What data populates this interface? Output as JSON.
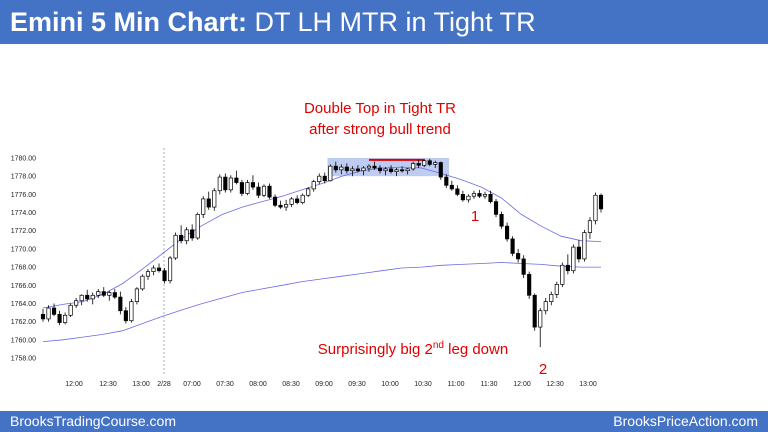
{
  "header": {
    "title_bold": "Emini 5 Min Chart:",
    "title_rest": " DT LH MTR in Tight TR"
  },
  "footer": {
    "left": "BrooksTradingCourse.com",
    "right": "BrooksPriceAction.com"
  },
  "colors": {
    "brand_blue": "#4472c4",
    "annotation_red": "#e00000",
    "ema_blue": "#6a6ae8",
    "range_fill": "#aabbee"
  },
  "chart_data": {
    "type": "candlestick",
    "title": "",
    "xlabel": "",
    "ylabel": "",
    "y_ticks": [
      "1758.00",
      "1760.00",
      "1762.00",
      "1764.00",
      "1766.00",
      "1768.00",
      "1770.00",
      "1772.00",
      "1774.00",
      "1776.00",
      "1778.00",
      "1780.00"
    ],
    "ylim": [
      1757,
      1781
    ],
    "x_ticks": [
      "12:00",
      "12:30",
      "13:00",
      "2/28",
      "07:00",
      "07:30",
      "08:00",
      "08:30",
      "09:00",
      "09:30",
      "10:00",
      "10:30",
      "11:00",
      "11:30",
      "12:00",
      "12:30",
      "13:00"
    ],
    "session_break": "2/28",
    "annotations": {
      "double_top_line1": "Double Top in Tight TR",
      "double_top_line2": "after strong bull trend",
      "leg1": "1",
      "leg2": "2",
      "second_leg_prefix": "Surprisingly big 2",
      "second_leg_sup": "nd",
      "second_leg_suffix": " leg down"
    },
    "candles": [
      [
        1762.8,
        1763.4,
        1762.0,
        1762.3
      ],
      [
        1762.3,
        1763.8,
        1762.0,
        1763.5
      ],
      [
        1763.5,
        1764.0,
        1762.6,
        1762.8
      ],
      [
        1762.8,
        1763.2,
        1761.6,
        1761.9
      ],
      [
        1761.9,
        1763.0,
        1761.7,
        1762.7
      ],
      [
        1762.7,
        1764.0,
        1762.5,
        1763.8
      ],
      [
        1763.8,
        1764.6,
        1763.5,
        1764.3
      ],
      [
        1764.3,
        1765.0,
        1763.8,
        1764.9
      ],
      [
        1764.9,
        1765.5,
        1764.2,
        1764.5
      ],
      [
        1764.5,
        1765.2,
        1763.9,
        1764.9
      ],
      [
        1764.9,
        1765.6,
        1764.6,
        1765.3
      ],
      [
        1765.3,
        1765.8,
        1764.7,
        1764.9
      ],
      [
        1764.9,
        1765.4,
        1764.3,
        1765.2
      ],
      [
        1765.2,
        1765.6,
        1764.5,
        1764.7
      ],
      [
        1764.7,
        1765.3,
        1762.8,
        1763.2
      ],
      [
        1763.2,
        1763.6,
        1761.8,
        1762.1
      ],
      [
        1762.1,
        1764.5,
        1761.9,
        1764.2
      ],
      [
        1764.2,
        1765.8,
        1763.9,
        1765.6
      ],
      [
        1765.6,
        1767.2,
        1765.4,
        1767.0
      ],
      [
        1767.0,
        1767.8,
        1766.6,
        1767.5
      ],
      [
        1767.5,
        1768.2,
        1767.1,
        1767.9
      ],
      [
        1767.9,
        1768.4,
        1767.4,
        1767.6
      ],
      [
        1767.6,
        1767.9,
        1766.2,
        1766.5
      ],
      [
        1766.5,
        1769.2,
        1766.2,
        1769.0
      ],
      [
        1769.0,
        1771.8,
        1768.8,
        1771.5
      ],
      [
        1771.5,
        1772.6,
        1770.6,
        1770.9
      ],
      [
        1770.9,
        1772.4,
        1770.5,
        1772.1
      ],
      [
        1772.1,
        1772.7,
        1770.9,
        1771.2
      ],
      [
        1771.2,
        1774.0,
        1771.0,
        1773.8
      ],
      [
        1773.8,
        1775.8,
        1773.4,
        1775.5
      ],
      [
        1775.5,
        1776.3,
        1774.3,
        1774.6
      ],
      [
        1774.6,
        1776.7,
        1774.2,
        1776.4
      ],
      [
        1776.4,
        1778.2,
        1776.0,
        1777.9
      ],
      [
        1777.9,
        1778.3,
        1776.2,
        1776.5
      ],
      [
        1776.5,
        1778.1,
        1776.2,
        1777.8
      ],
      [
        1777.8,
        1778.6,
        1777.1,
        1777.3
      ],
      [
        1777.3,
        1777.6,
        1775.8,
        1776.1
      ],
      [
        1776.1,
        1777.6,
        1775.9,
        1777.3
      ],
      [
        1777.3,
        1778.1,
        1776.5,
        1776.8
      ],
      [
        1776.8,
        1777.3,
        1775.6,
        1775.9
      ],
      [
        1775.9,
        1777.1,
        1775.7,
        1776.9
      ],
      [
        1776.9,
        1777.2,
        1775.5,
        1775.7
      ],
      [
        1775.7,
        1776.0,
        1774.6,
        1774.8
      ],
      [
        1774.8,
        1775.3,
        1774.4,
        1774.6
      ],
      [
        1774.6,
        1775.4,
        1774.2,
        1774.9
      ],
      [
        1774.9,
        1775.7,
        1774.6,
        1775.5
      ],
      [
        1775.5,
        1775.9,
        1774.9,
        1775.1
      ],
      [
        1775.1,
        1776.1,
        1774.9,
        1775.9
      ],
      [
        1775.9,
        1776.8,
        1775.7,
        1776.6
      ],
      [
        1776.6,
        1777.6,
        1776.3,
        1777.4
      ],
      [
        1777.4,
        1778.3,
        1777.1,
        1778.0
      ],
      [
        1778.0,
        1778.4,
        1777.2,
        1777.5
      ],
      [
        1777.5,
        1779.3,
        1777.4,
        1779.1
      ],
      [
        1779.1,
        1779.6,
        1778.4,
        1778.7
      ],
      [
        1778.7,
        1779.3,
        1778.2,
        1779.0
      ],
      [
        1779.0,
        1779.4,
        1778.3,
        1778.6
      ],
      [
        1778.6,
        1779.1,
        1778.0,
        1778.8
      ],
      [
        1778.8,
        1779.2,
        1778.4,
        1778.6
      ],
      [
        1778.6,
        1779.1,
        1778.1,
        1778.9
      ],
      [
        1778.9,
        1779.3,
        1778.5,
        1779.1
      ],
      [
        1779.1,
        1779.6,
        1778.7,
        1778.9
      ],
      [
        1778.9,
        1779.2,
        1778.3,
        1778.6
      ],
      [
        1778.6,
        1779.0,
        1778.1,
        1778.8
      ],
      [
        1778.8,
        1779.2,
        1778.3,
        1778.5
      ],
      [
        1778.5,
        1778.9,
        1778.0,
        1778.7
      ],
      [
        1778.7,
        1779.1,
        1778.4,
        1778.6
      ],
      [
        1778.6,
        1778.9,
        1778.2,
        1778.8
      ],
      [
        1778.8,
        1779.6,
        1778.6,
        1779.4
      ],
      [
        1779.4,
        1779.8,
        1778.9,
        1779.2
      ],
      [
        1779.2,
        1779.9,
        1779.0,
        1779.7
      ],
      [
        1779.7,
        1779.9,
        1779.1,
        1779.3
      ],
      [
        1779.3,
        1779.7,
        1778.9,
        1779.5
      ],
      [
        1779.5,
        1779.6,
        1777.6,
        1777.9
      ],
      [
        1777.9,
        1778.2,
        1776.7,
        1777.0
      ],
      [
        1777.0,
        1777.5,
        1776.4,
        1776.6
      ],
      [
        1776.6,
        1777.0,
        1775.8,
        1776.0
      ],
      [
        1776.0,
        1776.4,
        1775.2,
        1775.4
      ],
      [
        1775.4,
        1776.0,
        1775.1,
        1775.8
      ],
      [
        1775.8,
        1776.4,
        1775.5,
        1776.1
      ],
      [
        1776.1,
        1776.5,
        1775.6,
        1775.8
      ],
      [
        1775.8,
        1776.3,
        1775.5,
        1776.0
      ],
      [
        1776.0,
        1776.4,
        1775.0,
        1775.2
      ],
      [
        1775.2,
        1775.5,
        1773.5,
        1773.8
      ],
      [
        1773.8,
        1774.1,
        1772.2,
        1772.5
      ],
      [
        1772.5,
        1772.9,
        1770.8,
        1771.1
      ],
      [
        1771.1,
        1771.4,
        1769.2,
        1769.5
      ],
      [
        1769.5,
        1770.0,
        1768.5,
        1768.9
      ],
      [
        1768.9,
        1769.3,
        1766.8,
        1767.2
      ],
      [
        1767.2,
        1767.5,
        1764.5,
        1764.9
      ],
      [
        1764.9,
        1765.1,
        1761.0,
        1761.4
      ],
      [
        1761.4,
        1763.5,
        1759.2,
        1763.2
      ],
      [
        1763.2,
        1764.6,
        1762.8,
        1764.2
      ],
      [
        1764.2,
        1765.3,
        1763.8,
        1765.0
      ],
      [
        1765.0,
        1766.4,
        1764.6,
        1766.1
      ],
      [
        1766.1,
        1768.5,
        1765.8,
        1768.2
      ],
      [
        1768.2,
        1769.4,
        1767.2,
        1767.6
      ],
      [
        1767.6,
        1770.5,
        1767.3,
        1770.2
      ],
      [
        1770.2,
        1771.0,
        1768.5,
        1768.9
      ],
      [
        1768.9,
        1772.1,
        1768.6,
        1771.8
      ],
      [
        1771.8,
        1773.5,
        1771.1,
        1773.1
      ],
      [
        1773.1,
        1776.2,
        1772.7,
        1775.9
      ],
      [
        1775.9,
        1776.1,
        1774.0,
        1774.4
      ]
    ],
    "ema": [
      1763.5,
      1763.9,
      1764.2,
      1765.0,
      1766.2,
      1767.8,
      1769.5,
      1771.2,
      1772.6,
      1773.8,
      1774.6,
      1775.2,
      1775.8,
      1776.5,
      1777.2,
      1778.0,
      1778.6,
      1778.9,
      1779.0,
      1778.9,
      1778.3,
      1777.6,
      1776.8,
      1775.6,
      1773.8,
      1772.5,
      1771.4,
      1770.9,
      1770.8
    ],
    "slow_ma": [
      1759.8,
      1760.0,
      1760.3,
      1760.6,
      1761.0,
      1761.8,
      1762.6,
      1763.3,
      1764.0,
      1764.6,
      1765.2,
      1765.6,
      1766.0,
      1766.4,
      1766.7,
      1767.0,
      1767.3,
      1767.6,
      1767.9,
      1768.0,
      1768.2,
      1768.3,
      1768.4,
      1768.5,
      1768.4,
      1768.3,
      1768.1,
      1768.0,
      1768.0
    ],
    "range_box": {
      "bars": [
        52,
        73
      ],
      "low": 1778.0,
      "high": 1780.0
    },
    "resistance_line": {
      "bars": [
        59,
        69
      ],
      "price": 1779.8
    }
  }
}
